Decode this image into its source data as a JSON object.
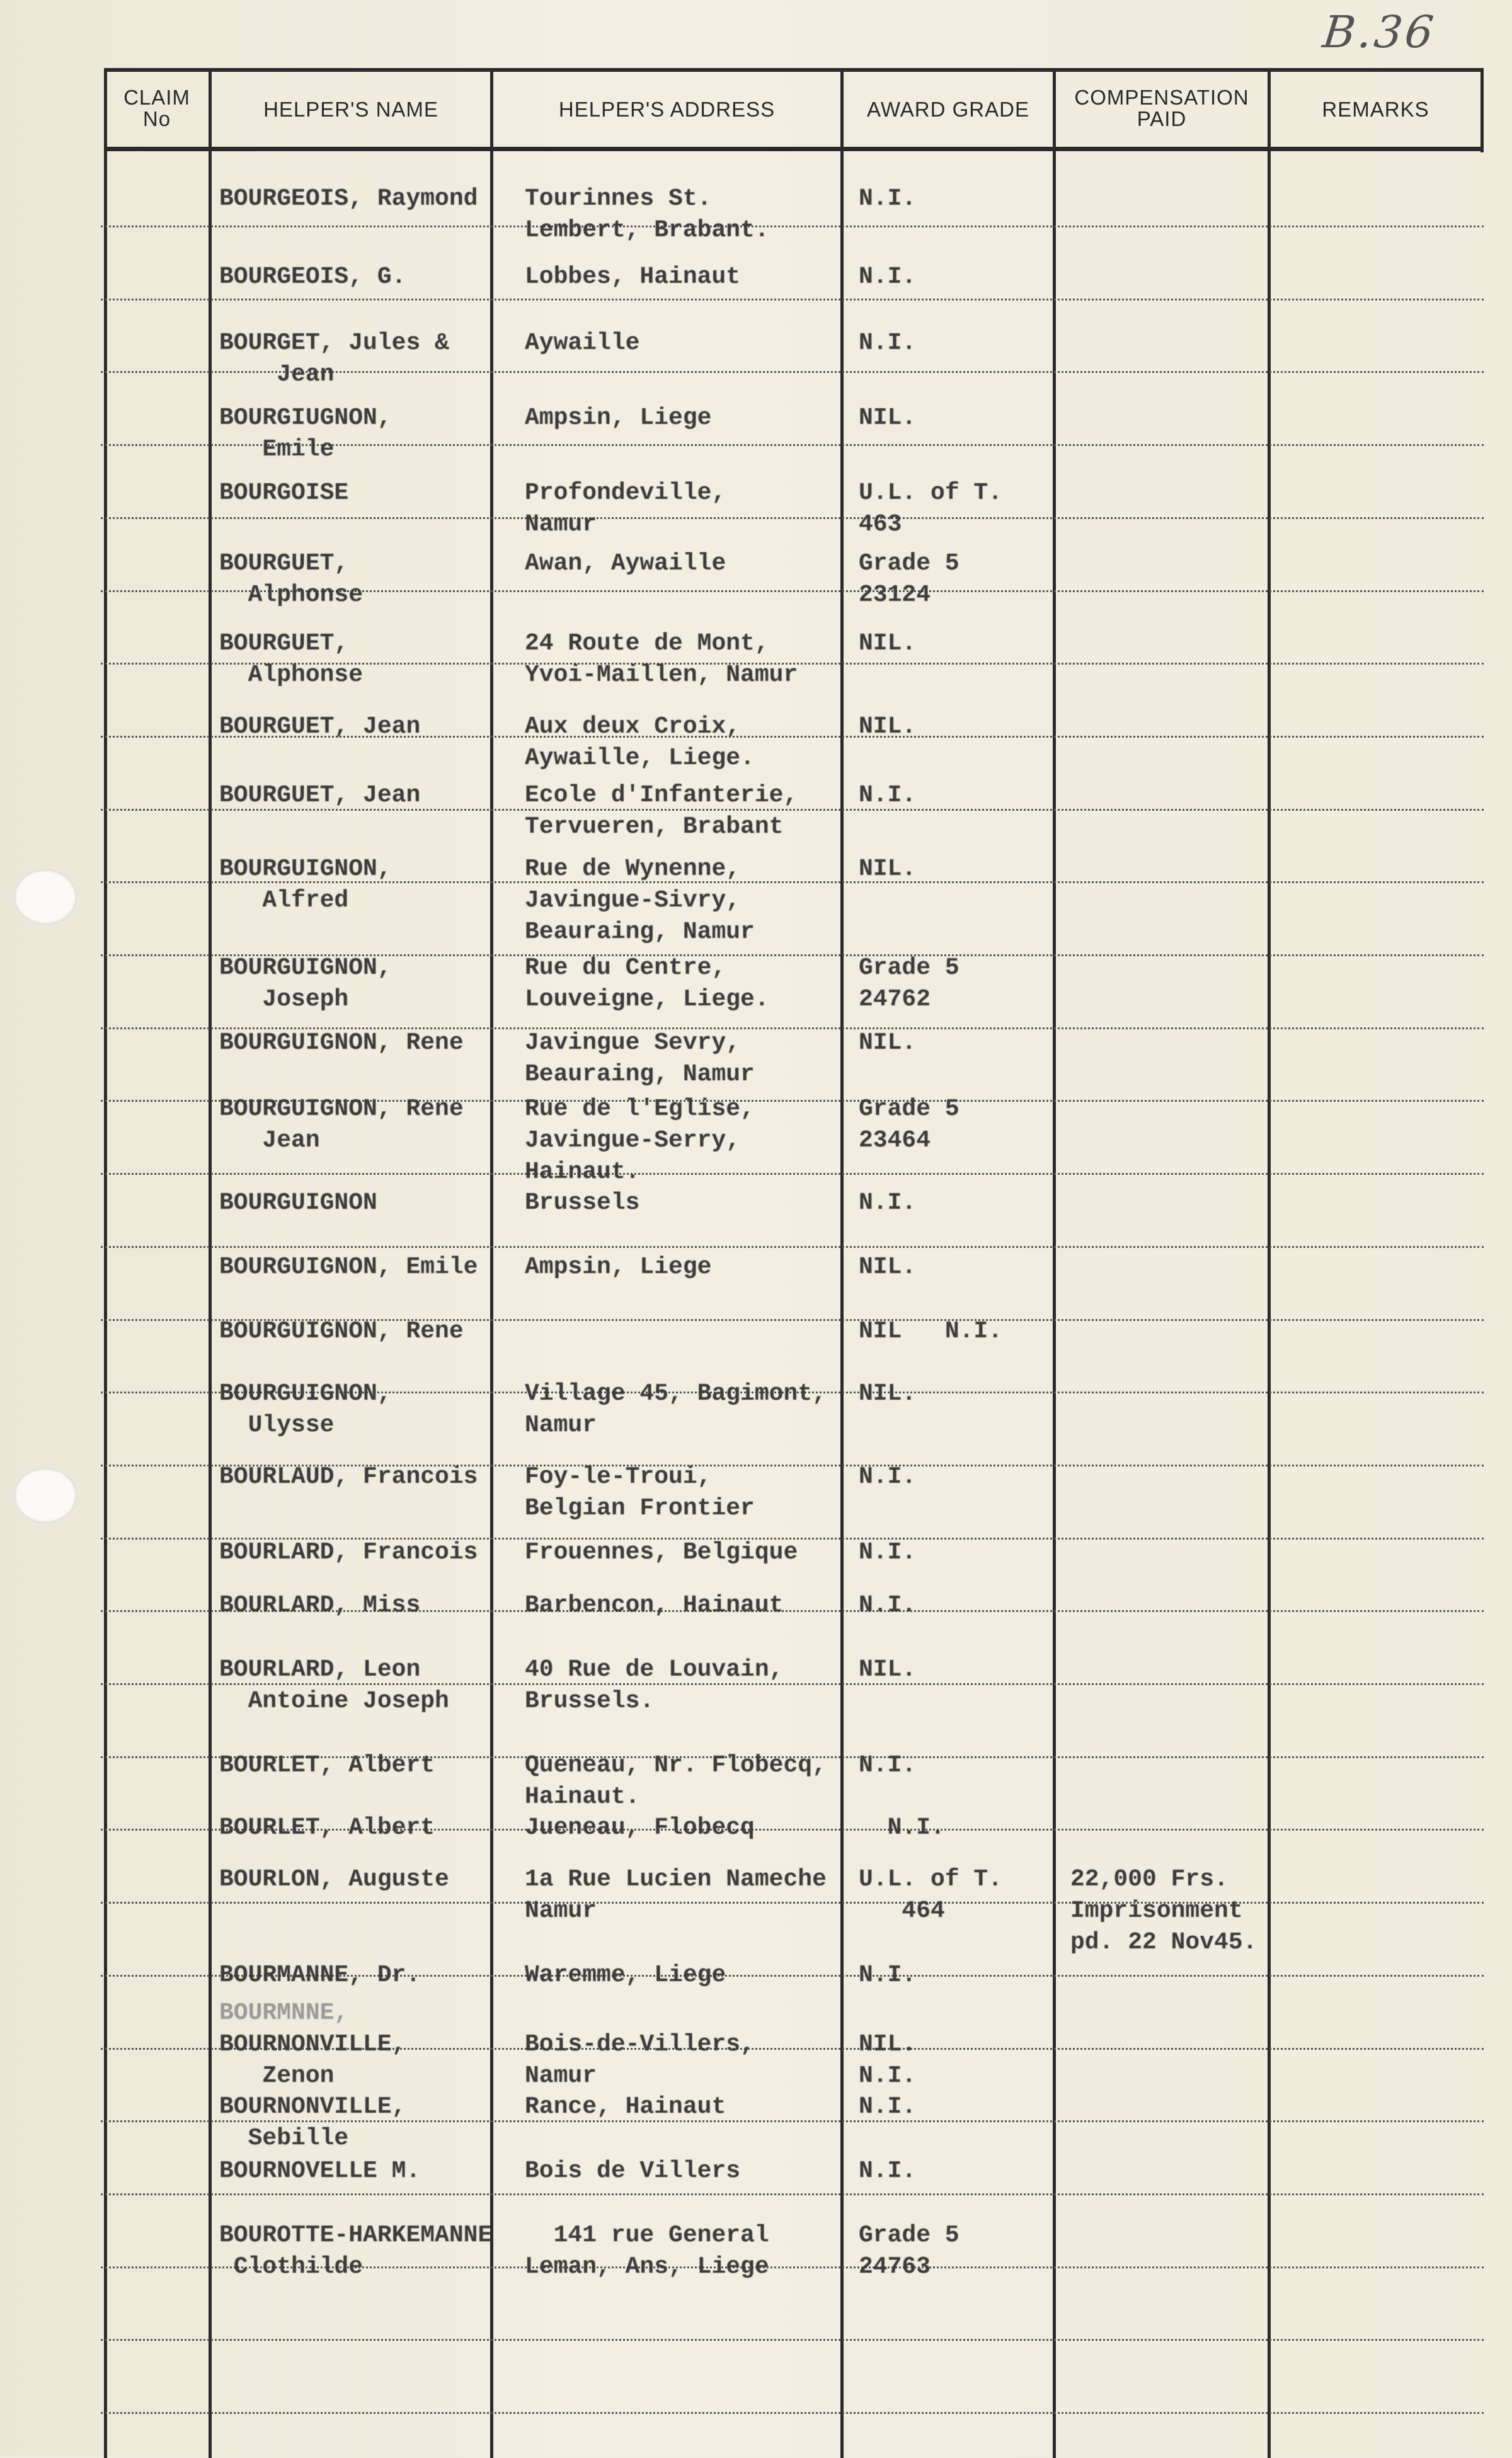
{
  "reference": "B.36",
  "headers": {
    "claim": "CLAIM\nNo",
    "name": "HELPER'S NAME",
    "address": "HELPER'S ADDRESS",
    "award": "AWARD GRADE",
    "compensation": "COMPENSATION\nPAID",
    "remarks": "REMARKS"
  },
  "rows": [
    {
      "name": [
        "BOURGEOIS, Raymond"
      ],
      "address": [
        "Tourinnes St.",
        "Lembert, Brabant."
      ],
      "award": [
        "N.I."
      ]
    },
    {
      "name": [
        "BOURGEOIS, G."
      ],
      "address": [
        "Lobbes, Hainaut"
      ],
      "award": [
        "N.I."
      ]
    },
    {
      "name": [
        "BOURGET, Jules &",
        "    Jean"
      ],
      "address": [
        "Aywaille"
      ],
      "award": [
        "N.I."
      ]
    },
    {
      "name": [
        "BOURGIUGNON,",
        "   Emile"
      ],
      "address": [
        "Ampsin, Liege"
      ],
      "award": [
        "NIL."
      ]
    },
    {
      "name": [
        "BOURGOISE"
      ],
      "address": [
        "Profondeville,",
        "Namur"
      ],
      "award": [
        "U.L. of T.",
        "463"
      ]
    },
    {
      "name": [
        "BOURGUET,",
        "  Alphonse"
      ],
      "address": [
        "Awan, Aywaille"
      ],
      "award": [
        "Grade 5",
        "23124"
      ]
    },
    {
      "name": [
        "BOURGUET,",
        "  Alphonse"
      ],
      "address": [
        "24 Route de Mont,",
        "Yvoi-Maillen, Namur"
      ],
      "award": [
        "NIL."
      ]
    },
    {
      "name": [
        "BOURGUET, Jean"
      ],
      "address": [
        "Aux deux Croix,",
        "Aywaille, Liege."
      ],
      "award": [
        "NIL."
      ]
    },
    {
      "name": [
        "BOURGUET, Jean"
      ],
      "address": [
        "Ecole d'Infanterie,",
        "Tervueren, Brabant"
      ],
      "award": [
        "N.I."
      ]
    },
    {
      "name": [
        "BOURGUIGNON,",
        "   Alfred"
      ],
      "address": [
        "Rue de Wynenne,",
        "Javingue-Sivry,",
        "Beauraing, Namur"
      ],
      "award": [
        "NIL."
      ]
    },
    {
      "name": [
        "BOURGUIGNON,",
        "   Joseph"
      ],
      "address": [
        "Rue du Centre,",
        "Louveigne, Liege."
      ],
      "award": [
        "Grade 5",
        "24762"
      ]
    },
    {
      "name": [
        "BOURGUIGNON, Rene"
      ],
      "address": [
        "Javingue Sevry,",
        "Beauraing, Namur"
      ],
      "award": [
        "NIL."
      ]
    },
    {
      "name": [
        "BOURGUIGNON, Rene",
        "   Jean"
      ],
      "address": [
        "Rue de l'Eglise,",
        "Javingue-Serry,",
        "Hainaut."
      ],
      "award": [
        "Grade 5",
        "23464"
      ]
    },
    {
      "name": [
        "BOURGUIGNON"
      ],
      "address": [
        "Brussels"
      ],
      "award": [
        "N.I."
      ]
    },
    {
      "name": [
        "BOURGUIGNON, Emile"
      ],
      "address": [
        "Ampsin, Liege"
      ],
      "award": [
        "NIL."
      ]
    },
    {
      "name": [
        "BOURGUIGNON, Rene"
      ],
      "address": [],
      "award": [
        "NIL   N.I."
      ]
    },
    {
      "name": [
        "BOURGUIGNON,",
        "  Ulysse"
      ],
      "address": [
        "Village 45, Bagimont,",
        "Namur"
      ],
      "award": [
        "NIL."
      ]
    },
    {
      "name": [
        "BOURLAUD, Francois"
      ],
      "address": [
        "Foy-le-Troui,",
        "Belgian Frontier"
      ],
      "award": [
        "N.I."
      ]
    },
    {
      "name": [
        "BOURLARD, Francois"
      ],
      "address": [
        "Frouennes, Belgique"
      ],
      "award": [
        "N.I."
      ]
    },
    {
      "name": [
        "BOURLARD, Miss"
      ],
      "address": [
        "Barbencon, Hainaut"
      ],
      "award": [
        "N.I."
      ]
    },
    {
      "name": [
        "BOURLARD, Leon",
        "  Antoine Joseph"
      ],
      "address": [
        "40 Rue de Louvain,",
        "Brussels."
      ],
      "award": [
        "NIL."
      ]
    },
    {
      "name": [
        "BOURLET, Albert"
      ],
      "address": [
        "Queneau, Nr. Flobecq,",
        "Hainaut."
      ],
      "award": [
        "N.I."
      ]
    },
    {
      "name": [
        "BOURLET, Albert"
      ],
      "address": [
        "Jueneau, Flobecq"
      ],
      "award": [
        "  N.I."
      ]
    },
    {
      "name": [
        "BOURLON, Auguste"
      ],
      "address": [
        "1a Rue Lucien Nameche",
        "Namur"
      ],
      "award": [
        "U.L. of T.",
        "   464"
      ],
      "compensation": [
        "22,000 Frs.",
        "Imprisonment",
        "pd. 22 Nov45."
      ]
    },
    {
      "name": [
        "BOURMANNE, Dr."
      ],
      "address": [
        "Waremme, Liege"
      ],
      "award": [
        "N.I."
      ]
    },
    {
      "name": [
        "BOURMNNE,"
      ],
      "address": [],
      "award": [],
      "faded": true
    },
    {
      "name": [
        "BOURNONVILLE,",
        "   Zenon"
      ],
      "address": [
        "Bois-de-Villers,",
        "Namur"
      ],
      "award": [
        "NIL.",
        "N.I."
      ]
    },
    {
      "name": [
        "BOURNONVILLE,",
        "  Sebille"
      ],
      "address": [
        "Rance, Hainaut"
      ],
      "award": [
        "N.I."
      ]
    },
    {
      "name": [
        "BOURNOVELLE M."
      ],
      "address": [
        "Bois de Villers"
      ],
      "award": [
        "N.I."
      ]
    },
    {
      "name": [
        "BOUROTTE-HARKEMANNE",
        " Clothilde"
      ],
      "address": [
        "  141 rue General",
        "Leman, Ans, Liege"
      ],
      "award": [
        "Grade 5",
        "24763"
      ]
    }
  ]
}
